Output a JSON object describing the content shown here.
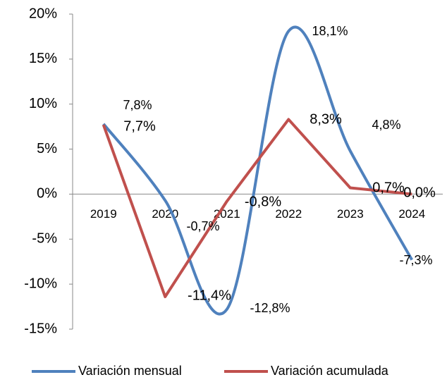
{
  "chart_data": {
    "type": "line",
    "categories": [
      "2019",
      "2020",
      "2021",
      "2022",
      "2023",
      "2024"
    ],
    "series": [
      {
        "name": "Variación mensual",
        "color": "#4f81bd",
        "smooth": true,
        "values": [
          7.8,
          -0.7,
          -12.8,
          18.1,
          4.8,
          -7.3
        ],
        "value_labels": [
          "7,8%",
          "-0,7%",
          "-12,8%",
          "18,1%",
          "4,8%",
          "-7,3%"
        ]
      },
      {
        "name": "Variación acumulada",
        "color": "#c0504d",
        "smooth": false,
        "values": [
          7.7,
          -11.4,
          -0.8,
          8.3,
          0.7,
          0.0
        ],
        "value_labels": [
          "7,7%",
          "-11,4%",
          "-0,8%",
          "8,3%",
          "0,7%",
          "0,0%"
        ]
      }
    ],
    "ylim": [
      -15,
      20
    ],
    "yticks": [
      {
        "value": -15,
        "label": "-15%"
      },
      {
        "value": -10,
        "label": "-10%"
      },
      {
        "value": -5,
        "label": "-5%"
      },
      {
        "value": 0,
        "label": "0%"
      },
      {
        "value": 5,
        "label": "5%"
      },
      {
        "value": 10,
        "label": "10%"
      },
      {
        "value": 15,
        "label": "15%"
      },
      {
        "value": 20,
        "label": "20%"
      }
    ],
    "grid": false,
    "legend": "bottom"
  }
}
